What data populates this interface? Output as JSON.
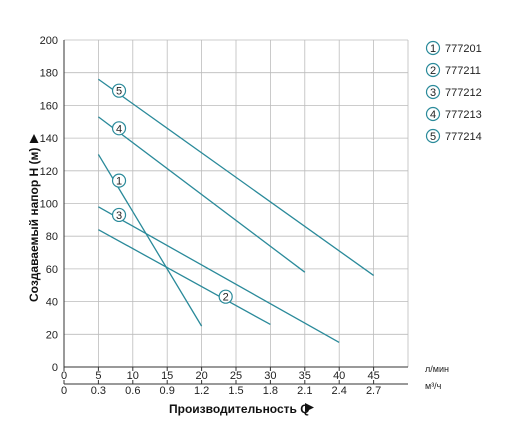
{
  "chart_data": {
    "type": "line",
    "xlabel": "Производительность Q",
    "ylabel": "Создаваемый напор H (м)",
    "x_unit_primary": "л/мин",
    "x_unit_secondary": "м³/ч",
    "xlim": [
      0,
      50
    ],
    "ylim": [
      0,
      200
    ],
    "x_ticks_primary": [
      0,
      5,
      10,
      15,
      20,
      25,
      30,
      35,
      40,
      45
    ],
    "x_ticks_secondary": [
      {
        "q": 0,
        "label": "0"
      },
      {
        "q": 5,
        "label": "0.3"
      },
      {
        "q": 10,
        "label": "0.6"
      },
      {
        "q": 15,
        "label": "0.9"
      },
      {
        "q": 20,
        "label": "1.2"
      },
      {
        "q": 25,
        "label": "1.5"
      },
      {
        "q": 30,
        "label": "1.8"
      },
      {
        "q": 35,
        "label": "2.1"
      },
      {
        "q": 40,
        "label": "2.4"
      },
      {
        "q": 45,
        "label": "2.7"
      }
    ],
    "y_ticks": [
      0,
      20,
      40,
      60,
      80,
      100,
      120,
      140,
      160,
      180,
      200
    ],
    "grid": true,
    "legend_position": "right",
    "line_color": "#2a8a9a",
    "series": [
      {
        "marker": "1",
        "name": "777201",
        "points": [
          [
            5,
            130
          ],
          [
            20,
            25
          ]
        ],
        "marker_at": [
          8,
          114
        ]
      },
      {
        "marker": "2",
        "name": "777211",
        "points": [
          [
            5,
            84
          ],
          [
            30,
            26
          ]
        ],
        "marker_at": [
          23.5,
          43
        ]
      },
      {
        "marker": "3",
        "name": "777212",
        "points": [
          [
            5,
            98
          ],
          [
            40,
            15
          ]
        ],
        "marker_at": [
          8,
          93
        ]
      },
      {
        "marker": "4",
        "name": "777213",
        "points": [
          [
            5,
            153
          ],
          [
            35,
            58
          ]
        ],
        "marker_at": [
          8,
          146
        ]
      },
      {
        "marker": "5",
        "name": "777214",
        "points": [
          [
            5,
            176
          ],
          [
            45,
            56
          ]
        ],
        "marker_at": [
          8,
          169
        ]
      }
    ]
  }
}
